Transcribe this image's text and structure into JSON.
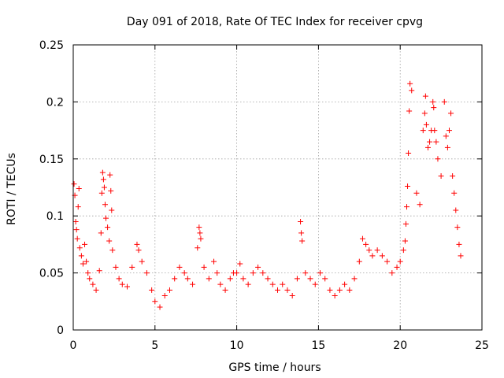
{
  "chart_data": {
    "type": "scatter",
    "title": "Day 091 of 2018, Rate Of TEC Index for receiver cpvg",
    "xlabel": "GPS time / hours",
    "ylabel": "ROTI / TECUs",
    "xlim": [
      0,
      25
    ],
    "ylim": [
      0,
      0.25
    ],
    "xticks": [
      0,
      5,
      10,
      15,
      20,
      25
    ],
    "xtick_labels": [
      "0",
      "5",
      "10",
      "15",
      "20",
      "25"
    ],
    "yticks": [
      0,
      0.05,
      0.1,
      0.15,
      0.2,
      0.25
    ],
    "ytick_labels": [
      "0",
      "0.05",
      "0.1",
      "0.15",
      "0.2",
      "0.25"
    ],
    "grid": true,
    "marker": "+",
    "series": [
      {
        "name": "ROTI",
        "color": "#ff0000",
        "points": [
          [
            0.05,
            0.128
          ],
          [
            0.1,
            0.118
          ],
          [
            0.15,
            0.095
          ],
          [
            0.2,
            0.088
          ],
          [
            0.25,
            0.08
          ],
          [
            0.3,
            0.108
          ],
          [
            0.35,
            0.124
          ],
          [
            0.4,
            0.072
          ],
          [
            0.5,
            0.065
          ],
          [
            0.6,
            0.058
          ],
          [
            0.7,
            0.075
          ],
          [
            0.8,
            0.06
          ],
          [
            0.9,
            0.05
          ],
          [
            1.0,
            0.045
          ],
          [
            1.2,
            0.04
          ],
          [
            1.4,
            0.035
          ],
          [
            1.6,
            0.052
          ],
          [
            1.7,
            0.085
          ],
          [
            1.75,
            0.12
          ],
          [
            1.8,
            0.138
          ],
          [
            1.85,
            0.132
          ],
          [
            1.9,
            0.125
          ],
          [
            1.95,
            0.11
          ],
          [
            2.0,
            0.098
          ],
          [
            2.1,
            0.09
          ],
          [
            2.2,
            0.078
          ],
          [
            2.25,
            0.136
          ],
          [
            2.3,
            0.122
          ],
          [
            2.35,
            0.105
          ],
          [
            2.4,
            0.07
          ],
          [
            2.6,
            0.055
          ],
          [
            2.8,
            0.045
          ],
          [
            3.0,
            0.04
          ],
          [
            3.3,
            0.038
          ],
          [
            3.6,
            0.055
          ],
          [
            3.9,
            0.075
          ],
          [
            4.0,
            0.07
          ],
          [
            4.2,
            0.06
          ],
          [
            4.5,
            0.05
          ],
          [
            4.8,
            0.035
          ],
          [
            5.0,
            0.025
          ],
          [
            5.3,
            0.02
          ],
          [
            5.6,
            0.03
          ],
          [
            5.9,
            0.035
          ],
          [
            6.2,
            0.045
          ],
          [
            6.5,
            0.055
          ],
          [
            6.8,
            0.05
          ],
          [
            7.0,
            0.045
          ],
          [
            7.3,
            0.04
          ],
          [
            7.6,
            0.072
          ],
          [
            7.7,
            0.09
          ],
          [
            7.75,
            0.085
          ],
          [
            7.8,
            0.08
          ],
          [
            8.0,
            0.055
          ],
          [
            8.3,
            0.045
          ],
          [
            8.6,
            0.06
          ],
          [
            8.8,
            0.05
          ],
          [
            9.0,
            0.04
          ],
          [
            9.3,
            0.035
          ],
          [
            9.6,
            0.045
          ],
          [
            9.8,
            0.05
          ],
          [
            10.0,
            0.05
          ],
          [
            10.2,
            0.058
          ],
          [
            10.4,
            0.045
          ],
          [
            10.7,
            0.04
          ],
          [
            11.0,
            0.05
          ],
          [
            11.3,
            0.055
          ],
          [
            11.6,
            0.05
          ],
          [
            11.9,
            0.045
          ],
          [
            12.2,
            0.04
          ],
          [
            12.5,
            0.035
          ],
          [
            12.8,
            0.04
          ],
          [
            13.1,
            0.035
          ],
          [
            13.4,
            0.03
          ],
          [
            13.7,
            0.045
          ],
          [
            13.9,
            0.095
          ],
          [
            13.95,
            0.085
          ],
          [
            14.0,
            0.078
          ],
          [
            14.2,
            0.05
          ],
          [
            14.5,
            0.045
          ],
          [
            14.8,
            0.04
          ],
          [
            15.1,
            0.05
          ],
          [
            15.4,
            0.045
          ],
          [
            15.7,
            0.035
          ],
          [
            16.0,
            0.03
          ],
          [
            16.3,
            0.035
          ],
          [
            16.6,
            0.04
          ],
          [
            16.9,
            0.035
          ],
          [
            17.2,
            0.045
          ],
          [
            17.5,
            0.06
          ],
          [
            17.7,
            0.08
          ],
          [
            17.9,
            0.075
          ],
          [
            18.1,
            0.07
          ],
          [
            18.3,
            0.065
          ],
          [
            18.6,
            0.07
          ],
          [
            18.9,
            0.065
          ],
          [
            19.2,
            0.06
          ],
          [
            19.5,
            0.05
          ],
          [
            19.8,
            0.055
          ],
          [
            20.0,
            0.06
          ],
          [
            20.2,
            0.07
          ],
          [
            20.3,
            0.078
          ],
          [
            20.35,
            0.093
          ],
          [
            20.4,
            0.108
          ],
          [
            20.45,
            0.126
          ],
          [
            20.5,
            0.155
          ],
          [
            20.55,
            0.192
          ],
          [
            20.6,
            0.216
          ],
          [
            20.7,
            0.21
          ],
          [
            21.0,
            0.12
          ],
          [
            21.2,
            0.11
          ],
          [
            21.4,
            0.175
          ],
          [
            21.5,
            0.19
          ],
          [
            21.55,
            0.205
          ],
          [
            21.6,
            0.18
          ],
          [
            21.7,
            0.16
          ],
          [
            21.8,
            0.165
          ],
          [
            21.9,
            0.175
          ],
          [
            22.0,
            0.2
          ],
          [
            22.05,
            0.195
          ],
          [
            22.1,
            0.175
          ],
          [
            22.2,
            0.165
          ],
          [
            22.3,
            0.15
          ],
          [
            22.5,
            0.135
          ],
          [
            22.7,
            0.2
          ],
          [
            22.8,
            0.17
          ],
          [
            22.9,
            0.16
          ],
          [
            23.0,
            0.175
          ],
          [
            23.1,
            0.19
          ],
          [
            23.2,
            0.135
          ],
          [
            23.3,
            0.12
          ],
          [
            23.4,
            0.105
          ],
          [
            23.5,
            0.09
          ],
          [
            23.6,
            0.075
          ],
          [
            23.7,
            0.065
          ]
        ]
      }
    ]
  }
}
